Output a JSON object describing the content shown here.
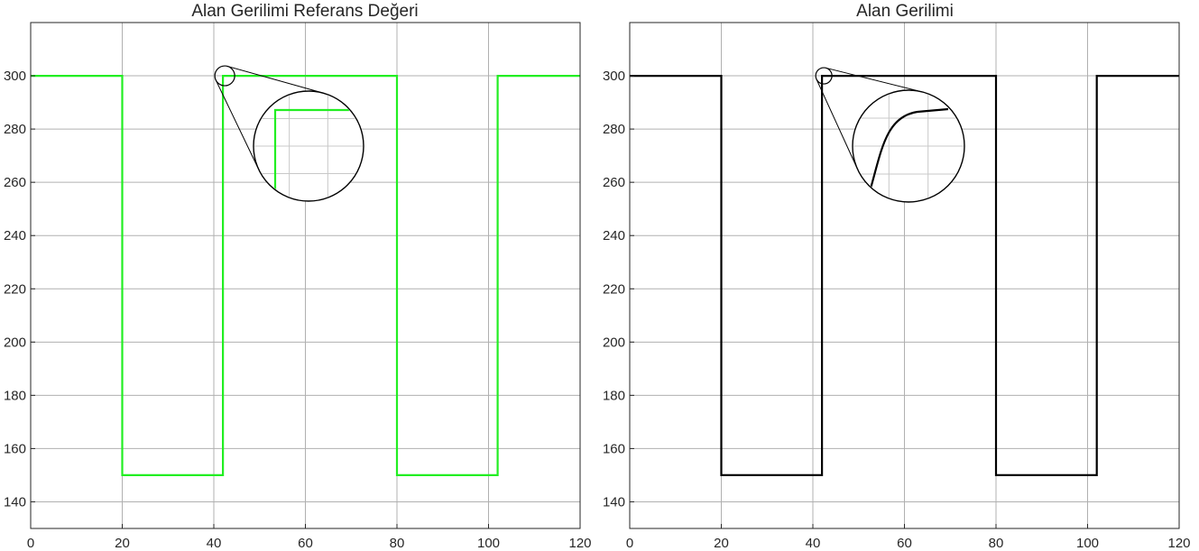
{
  "chart_data": [
    {
      "type": "line",
      "title": "Alan Gerilimi Referans Değeri",
      "xlabel": "",
      "ylabel": "",
      "xlim": [
        0,
        120
      ],
      "ylim": [
        130,
        320
      ],
      "xticks": [
        0,
        20,
        40,
        60,
        80,
        100,
        120
      ],
      "yticks": [
        140,
        160,
        180,
        200,
        220,
        240,
        260,
        280,
        300
      ],
      "grid": true,
      "color": "#22ee22",
      "series": [
        {
          "x": [
            0,
            20,
            20,
            42,
            42,
            80,
            80,
            102,
            102,
            120
          ],
          "y": [
            300,
            300,
            150,
            150,
            300,
            300,
            150,
            150,
            300,
            300
          ]
        }
      ],
      "zoom_inset": {
        "focus": [
          42,
          300
        ],
        "curve": "step"
      }
    },
    {
      "type": "line",
      "title": "Alan Gerilimi",
      "xlabel": "",
      "ylabel": "",
      "xlim": [
        0,
        120
      ],
      "ylim": [
        130,
        320
      ],
      "xticks": [
        0,
        20,
        40,
        60,
        80,
        100,
        120
      ],
      "yticks": [
        140,
        160,
        180,
        200,
        220,
        240,
        260,
        280,
        300
      ],
      "grid": true,
      "color": "#000000",
      "series": [
        {
          "x": [
            0,
            20,
            20,
            42,
            42,
            80,
            80,
            102,
            102,
            120
          ],
          "y": [
            300,
            300,
            150,
            150,
            300,
            300,
            150,
            150,
            300,
            300
          ]
        }
      ],
      "zoom_inset": {
        "focus": [
          42,
          300
        ],
        "curve": "rise"
      }
    }
  ]
}
